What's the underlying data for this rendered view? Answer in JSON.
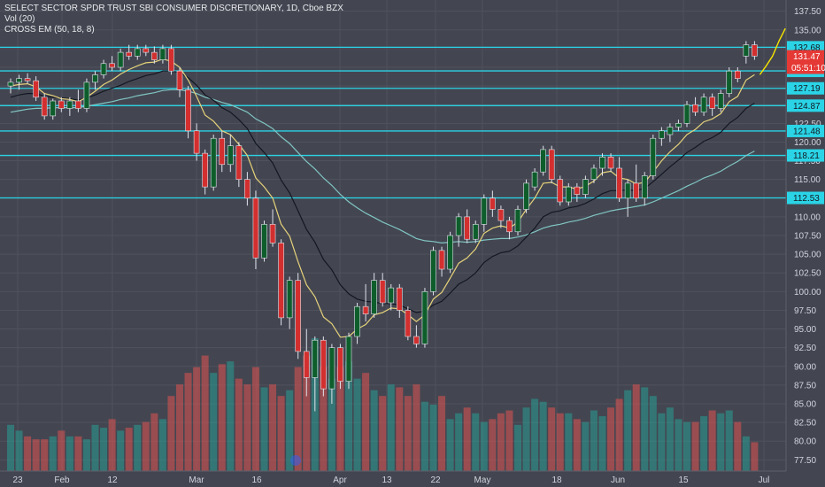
{
  "chart_data": {
    "type": "candlestick",
    "title": "SELECT SECTOR SPDR TRUST SBI CONSUMER DISCRETIONARY, 1D, Cboe BZX",
    "indicators": [
      "Vol (20)",
      "CROSS EM (50, 18, 8)"
    ],
    "ylim": [
      76,
      139
    ],
    "y_ticks": [
      77.5,
      80,
      82.5,
      85,
      87.5,
      90,
      92.5,
      95,
      97.5,
      100,
      102.5,
      105,
      107.5,
      110,
      112.5,
      115,
      117.5,
      120,
      122.5,
      125,
      127.5,
      130,
      132.5,
      135,
      137.5
    ],
    "x_ticks": [
      "23",
      "Feb",
      "12",
      "Mar",
      "16",
      "Apr",
      "13",
      "22",
      "May",
      "18",
      "Jun",
      "15",
      "Jul"
    ],
    "horizontal_levels": [
      132.68,
      129.52,
      127.19,
      124.87,
      121.48,
      118.21,
      112.53
    ],
    "price_labels": {
      "last": "131.47",
      "countdown": "05:51:10"
    },
    "candles": [
      {
        "o": 127.5,
        "h": 128.5,
        "l": 126.5,
        "c": 128.0
      },
      {
        "o": 128.0,
        "h": 129.0,
        "l": 127.0,
        "c": 128.5
      },
      {
        "o": 128.5,
        "h": 129.2,
        "l": 127.8,
        "c": 128.2
      },
      {
        "o": 128.2,
        "h": 128.8,
        "l": 125.5,
        "c": 126.0
      },
      {
        "o": 126.0,
        "h": 126.5,
        "l": 123.0,
        "c": 123.5
      },
      {
        "o": 123.5,
        "h": 125.8,
        "l": 123.0,
        "c": 125.5
      },
      {
        "o": 125.5,
        "h": 126.0,
        "l": 124.0,
        "c": 124.5
      },
      {
        "o": 124.5,
        "h": 126.0,
        "l": 123.5,
        "c": 125.5
      },
      {
        "o": 125.5,
        "h": 127.0,
        "l": 124.0,
        "c": 124.5
      },
      {
        "o": 124.5,
        "h": 128.5,
        "l": 124.0,
        "c": 128.0
      },
      {
        "o": 128.0,
        "h": 129.5,
        "l": 127.0,
        "c": 129.0
      },
      {
        "o": 129.0,
        "h": 131.0,
        "l": 128.5,
        "c": 130.5
      },
      {
        "o": 130.5,
        "h": 131.5,
        "l": 129.5,
        "c": 130.0
      },
      {
        "o": 130.0,
        "h": 132.5,
        "l": 129.5,
        "c": 132.0
      },
      {
        "o": 132.0,
        "h": 133.0,
        "l": 131.0,
        "c": 131.5
      },
      {
        "o": 131.5,
        "h": 133.0,
        "l": 131.0,
        "c": 132.5
      },
      {
        "o": 132.5,
        "h": 133.0,
        "l": 131.5,
        "c": 132.0
      },
      {
        "o": 132.0,
        "h": 132.8,
        "l": 130.5,
        "c": 131.0
      },
      {
        "o": 131.0,
        "h": 133.0,
        "l": 130.5,
        "c": 132.5
      },
      {
        "o": 132.5,
        "h": 133.0,
        "l": 129.0,
        "c": 129.5
      },
      {
        "o": 129.5,
        "h": 130.0,
        "l": 126.0,
        "c": 127.0
      },
      {
        "o": 127.0,
        "h": 127.5,
        "l": 120.5,
        "c": 121.5
      },
      {
        "o": 121.5,
        "h": 122.5,
        "l": 117.5,
        "c": 118.5
      },
      {
        "o": 118.5,
        "h": 119.0,
        "l": 113.0,
        "c": 114.0
      },
      {
        "o": 114.0,
        "h": 121.0,
        "l": 113.5,
        "c": 120.5
      },
      {
        "o": 120.5,
        "h": 121.5,
        "l": 116.0,
        "c": 117.0
      },
      {
        "o": 117.0,
        "h": 121.0,
        "l": 116.0,
        "c": 119.5
      },
      {
        "o": 119.5,
        "h": 120.0,
        "l": 114.0,
        "c": 115.0
      },
      {
        "o": 115.0,
        "h": 116.0,
        "l": 111.5,
        "c": 112.5
      },
      {
        "o": 112.5,
        "h": 113.5,
        "l": 103.0,
        "c": 104.5
      },
      {
        "o": 104.5,
        "h": 109.5,
        "l": 104.0,
        "c": 109.0
      },
      {
        "o": 109.0,
        "h": 111.0,
        "l": 106.0,
        "c": 106.5
      },
      {
        "o": 106.5,
        "h": 107.0,
        "l": 95.5,
        "c": 96.5
      },
      {
        "o": 96.5,
        "h": 102.0,
        "l": 95.0,
        "c": 101.5
      },
      {
        "o": 101.5,
        "h": 102.5,
        "l": 91.0,
        "c": 92.0
      },
      {
        "o": 92.0,
        "h": 95.0,
        "l": 86.0,
        "c": 88.5
      },
      {
        "o": 88.5,
        "h": 94.0,
        "l": 84.0,
        "c": 93.5
      },
      {
        "o": 93.5,
        "h": 94.0,
        "l": 86.0,
        "c": 87.0
      },
      {
        "o": 87.0,
        "h": 93.0,
        "l": 85.0,
        "c": 92.5
      },
      {
        "o": 92.5,
        "h": 93.0,
        "l": 87.0,
        "c": 88.0
      },
      {
        "o": 88.0,
        "h": 94.5,
        "l": 87.0,
        "c": 94.0
      },
      {
        "o": 94.0,
        "h": 98.5,
        "l": 93.0,
        "c": 98.0
      },
      {
        "o": 98.0,
        "h": 101.0,
        "l": 96.0,
        "c": 97.0
      },
      {
        "o": 97.0,
        "h": 102.5,
        "l": 96.5,
        "c": 101.5
      },
      {
        "o": 101.5,
        "h": 102.5,
        "l": 98.0,
        "c": 98.5
      },
      {
        "o": 98.5,
        "h": 101.0,
        "l": 97.5,
        "c": 100.5
      },
      {
        "o": 100.5,
        "h": 101.0,
        "l": 96.5,
        "c": 97.5
      },
      {
        "o": 97.5,
        "h": 98.0,
        "l": 93.5,
        "c": 94.0
      },
      {
        "o": 94.0,
        "h": 95.5,
        "l": 92.5,
        "c": 93.0
      },
      {
        "o": 93.0,
        "h": 100.5,
        "l": 92.5,
        "c": 100.0
      },
      {
        "o": 100.0,
        "h": 106.0,
        "l": 99.5,
        "c": 105.5
      },
      {
        "o": 105.5,
        "h": 106.0,
        "l": 102.0,
        "c": 103.0
      },
      {
        "o": 103.0,
        "h": 108.0,
        "l": 102.5,
        "c": 107.5
      },
      {
        "o": 107.5,
        "h": 110.5,
        "l": 106.0,
        "c": 110.0
      },
      {
        "o": 110.0,
        "h": 111.0,
        "l": 106.5,
        "c": 107.0
      },
      {
        "o": 107.0,
        "h": 109.5,
        "l": 106.5,
        "c": 109.0
      },
      {
        "o": 109.0,
        "h": 113.0,
        "l": 108.0,
        "c": 112.5
      },
      {
        "o": 112.5,
        "h": 113.5,
        "l": 110.0,
        "c": 111.0
      },
      {
        "o": 111.0,
        "h": 111.5,
        "l": 108.5,
        "c": 109.5
      },
      {
        "o": 109.5,
        "h": 110.0,
        "l": 107.0,
        "c": 108.0
      },
      {
        "o": 108.0,
        "h": 111.5,
        "l": 107.5,
        "c": 111.0
      },
      {
        "o": 111.0,
        "h": 115.0,
        "l": 110.5,
        "c": 114.5
      },
      {
        "o": 114.0,
        "h": 116.5,
        "l": 113.5,
        "c": 116.0
      },
      {
        "o": 116.0,
        "h": 119.5,
        "l": 115.5,
        "c": 119.0
      },
      {
        "o": 119.0,
        "h": 119.5,
        "l": 114.5,
        "c": 115.0
      },
      {
        "o": 115.0,
        "h": 115.5,
        "l": 111.5,
        "c": 112.0
      },
      {
        "o": 112.0,
        "h": 114.5,
        "l": 111.5,
        "c": 114.0
      },
      {
        "o": 114.0,
        "h": 114.5,
        "l": 112.0,
        "c": 113.0
      },
      {
        "o": 113.0,
        "h": 115.5,
        "l": 112.5,
        "c": 115.0
      },
      {
        "o": 115.0,
        "h": 117.0,
        "l": 114.5,
        "c": 116.5
      },
      {
        "o": 116.5,
        "h": 118.5,
        "l": 115.5,
        "c": 118.0
      },
      {
        "o": 118.0,
        "h": 118.5,
        "l": 116.0,
        "c": 116.5
      },
      {
        "o": 116.5,
        "h": 118.0,
        "l": 112.0,
        "c": 112.5
      },
      {
        "o": 112.5,
        "h": 115.0,
        "l": 110.0,
        "c": 114.5
      },
      {
        "o": 114.5,
        "h": 117.0,
        "l": 112.0,
        "c": 112.5
      },
      {
        "o": 112.5,
        "h": 116.0,
        "l": 111.5,
        "c": 115.5
      },
      {
        "o": 115.5,
        "h": 121.0,
        "l": 115.0,
        "c": 120.5
      },
      {
        "o": 120.5,
        "h": 122.0,
        "l": 119.5,
        "c": 121.5
      },
      {
        "o": 121.0,
        "h": 122.5,
        "l": 120.0,
        "c": 122.0
      },
      {
        "o": 122.0,
        "h": 123.0,
        "l": 121.5,
        "c": 122.5
      },
      {
        "o": 122.5,
        "h": 125.5,
        "l": 122.0,
        "c": 125.0
      },
      {
        "o": 125.0,
        "h": 126.0,
        "l": 123.5,
        "c": 124.0
      },
      {
        "o": 124.0,
        "h": 126.5,
        "l": 123.5,
        "c": 126.0
      },
      {
        "o": 126.0,
        "h": 126.5,
        "l": 123.5,
        "c": 124.5
      },
      {
        "o": 124.5,
        "h": 127.0,
        "l": 124.0,
        "c": 126.5
      },
      {
        "o": 126.5,
        "h": 130.0,
        "l": 126.0,
        "c": 129.5
      },
      {
        "o": 129.5,
        "h": 130.0,
        "l": 128.0,
        "c": 128.5
      },
      {
        "o": 131.5,
        "h": 133.5,
        "l": 130.5,
        "c": 133.0
      },
      {
        "o": 133.0,
        "h": 133.5,
        "l": 131.0,
        "c": 131.5
      }
    ],
    "volumes": [
      16,
      14,
      12,
      11,
      11,
      12,
      14,
      12,
      12,
      11,
      16,
      15,
      18,
      14,
      15,
      16,
      17,
      20,
      18,
      26,
      30,
      34,
      36,
      40,
      34,
      37,
      38,
      32,
      30,
      36,
      29,
      30,
      26,
      28,
      36,
      40,
      46,
      36,
      32,
      36,
      38,
      32,
      34,
      28,
      26,
      30,
      29,
      26,
      30,
      24,
      23,
      26,
      18,
      20,
      22,
      20,
      17,
      18,
      20,
      21,
      16,
      22,
      25,
      24,
      22,
      20,
      20,
      18,
      17,
      21,
      19,
      22,
      25,
      28,
      30,
      29,
      26,
      20,
      22,
      18,
      17,
      17,
      19,
      21,
      20,
      21,
      17,
      12,
      10
    ],
    "ema_fast": [
      127.5,
      127.7,
      127.8,
      127.4,
      126.5,
      126.2,
      125.8,
      125.7,
      125.4,
      126.0,
      126.8,
      127.7,
      128.3,
      129.1,
      129.7,
      130.2,
      130.6,
      130.7,
      131.1,
      130.8,
      130.0,
      128.3,
      126.1,
      123.6,
      122.8,
      121.5,
      121.0,
      119.7,
      118.2,
      115.2,
      114.0,
      112.5,
      109.0,
      107.4,
      104.0,
      100.9,
      99.3,
      96.6,
      95.7,
      93.9,
      94.0,
      95.0,
      95.6,
      96.9,
      97.2,
      97.8,
      97.7,
      96.9,
      96.0,
      96.9,
      99.0,
      99.9,
      101.8,
      103.8,
      104.5,
      105.7,
      107.8,
      108.5,
      108.8,
      108.5,
      109.3,
      111.0,
      112.5,
      114.5,
      114.6,
      114.0,
      114.0,
      113.7,
      114.1,
      114.8,
      115.9,
      116.1,
      115.2,
      115.0,
      114.4,
      114.6,
      116.0,
      117.5,
      118.7,
      119.7,
      121.0,
      121.7,
      122.7,
      123.1,
      123.8,
      125.4,
      126.1,
      128.3,
      129.0
    ],
    "ema_mid": [
      126.0,
      126.3,
      126.5,
      126.5,
      126.1,
      126.0,
      125.9,
      125.8,
      125.6,
      125.9,
      126.3,
      126.8,
      127.2,
      127.6,
      128.1,
      128.5,
      128.9,
      129.1,
      129.5,
      129.5,
      129.3,
      128.6,
      127.6,
      126.3,
      125.6,
      124.6,
      124.0,
      123.0,
      121.8,
      119.8,
      118.6,
      117.2,
      114.9,
      113.2,
      110.8,
      108.3,
      106.6,
      104.3,
      102.9,
      100.9,
      99.7,
      99.0,
      98.7,
      98.6,
      98.4,
      98.4,
      98.2,
      97.7,
      97.2,
      97.4,
      98.2,
      98.7,
      99.8,
      101.0,
      101.6,
      102.5,
      103.9,
      104.7,
      105.2,
      105.4,
      106.1,
      107.3,
      108.5,
      110.0,
      110.6,
      110.8,
      111.2,
      111.4,
      111.8,
      112.4,
      113.1,
      113.5,
      113.5,
      113.6,
      113.5,
      113.8,
      114.7,
      115.7,
      116.7,
      117.6,
      118.6,
      119.3,
      120.1,
      120.6,
      121.3,
      122.5,
      123.3,
      124.5,
      125.2
    ],
    "ema_slow": [
      124.0,
      124.2,
      124.4,
      124.5,
      124.5,
      124.6,
      124.6,
      124.6,
      124.6,
      124.8,
      125.0,
      125.2,
      125.4,
      125.7,
      125.9,
      126.2,
      126.4,
      126.6,
      126.9,
      127.0,
      127.0,
      126.8,
      126.5,
      126.0,
      125.7,
      125.3,
      125.0,
      124.5,
      124.0,
      123.1,
      122.5,
      121.8,
      120.7,
      119.8,
      118.6,
      117.4,
      116.4,
      115.2,
      114.2,
      113.0,
      112.0,
      111.2,
      110.5,
      109.9,
      109.3,
      108.8,
      108.3,
      107.7,
      107.1,
      106.8,
      106.7,
      106.5,
      106.6,
      106.7,
      106.6,
      106.7,
      106.9,
      107.0,
      107.1,
      107.1,
      107.3,
      107.6,
      108.0,
      108.5,
      108.8,
      109.0,
      109.3,
      109.5,
      109.8,
      110.2,
      110.5,
      110.8,
      111.0,
      111.2,
      111.4,
      111.6,
      112.0,
      112.5,
      113.0,
      113.5,
      114.1,
      114.6,
      115.2,
      115.6,
      116.1,
      116.8,
      117.4,
      118.2,
      118.8
    ],
    "projection": [
      [
        131.5,
        129.0
      ],
      [
        132.0,
        130.2
      ],
      [
        132.8,
        131.5
      ],
      [
        133.8,
        133.5
      ],
      [
        135.3,
        135.2
      ]
    ]
  }
}
